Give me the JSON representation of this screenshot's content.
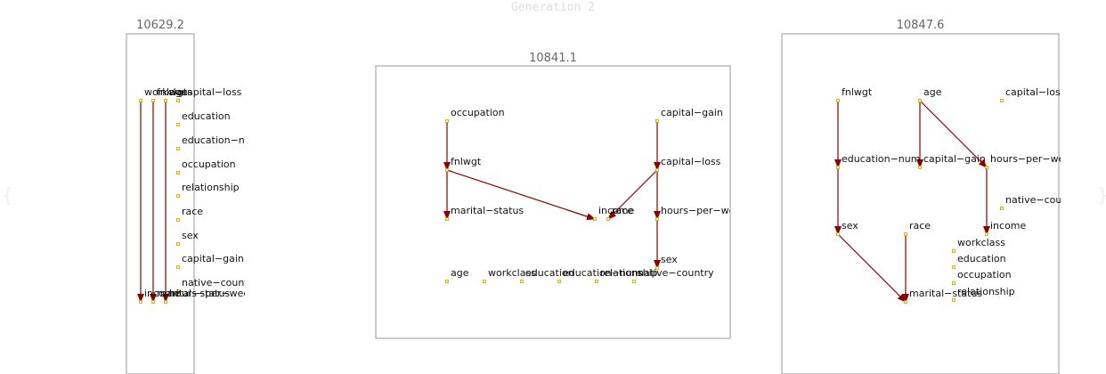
{
  "title": "Generation 2",
  "colors": {
    "edge": "#8b0000",
    "node_fill": "#ffff99",
    "node_stroke": "#c8a000",
    "frame": "#999999",
    "score_text": "#666666",
    "title_text": "#dddddd",
    "label_text": "#111111"
  },
  "panels": [
    {
      "score": "10629.2",
      "nodes": [
        {
          "id": "workclass",
          "label": "workclass"
        },
        {
          "id": "fnlwgt",
          "label": "fnlwgt"
        },
        {
          "id": "age",
          "label": "age"
        },
        {
          "id": "capital-loss",
          "label": "capital−loss"
        },
        {
          "id": "education",
          "label": "education"
        },
        {
          "id": "education-num",
          "label": "education−nu"
        },
        {
          "id": "occupation",
          "label": "occupation"
        },
        {
          "id": "relationship",
          "label": "relationship"
        },
        {
          "id": "race",
          "label": "race"
        },
        {
          "id": "sex",
          "label": "sex"
        },
        {
          "id": "capital-gain",
          "label": "capital−gain"
        },
        {
          "id": "native-country",
          "label": "native−count"
        },
        {
          "id": "income",
          "label": "income"
        },
        {
          "id": "marital-status",
          "label": "marital−status"
        },
        {
          "id": "hours-per-week",
          "label": "hours−per−wee"
        }
      ],
      "edges": [
        {
          "from": "workclass",
          "to": "income"
        },
        {
          "from": "fnlwgt",
          "to": "marital-status"
        },
        {
          "from": "age",
          "to": "hours-per-week"
        }
      ]
    },
    {
      "score": "10841.1",
      "nodes": [
        {
          "id": "occupation",
          "label": "occupation"
        },
        {
          "id": "capital-gain",
          "label": "capital−gain"
        },
        {
          "id": "fnlwgt",
          "label": "fnlwgt"
        },
        {
          "id": "capital-loss",
          "label": "capital−loss"
        },
        {
          "id": "marital-status",
          "label": "marital−status"
        },
        {
          "id": "income",
          "label": "income"
        },
        {
          "id": "race",
          "label": "race"
        },
        {
          "id": "hours-per-week",
          "label": "hours−per−we"
        },
        {
          "id": "sex",
          "label": "sex"
        },
        {
          "id": "age",
          "label": "age"
        },
        {
          "id": "workclass",
          "label": "workclass"
        },
        {
          "id": "education",
          "label": "education"
        },
        {
          "id": "education-num",
          "label": "education−num"
        },
        {
          "id": "relationship",
          "label": "relationship"
        },
        {
          "id": "native-country",
          "label": "native−country"
        }
      ],
      "edges": [
        {
          "from": "occupation",
          "to": "fnlwgt"
        },
        {
          "from": "fnlwgt",
          "to": "marital-status"
        },
        {
          "from": "fnlwgt",
          "to": "income"
        },
        {
          "from": "capital-gain",
          "to": "capital-loss"
        },
        {
          "from": "capital-loss",
          "to": "race"
        },
        {
          "from": "capital-loss",
          "to": "hours-per-week"
        },
        {
          "from": "hours-per-week",
          "to": "sex"
        }
      ]
    },
    {
      "score": "10847.6",
      "nodes": [
        {
          "id": "fnlwgt",
          "label": "fnlwgt"
        },
        {
          "id": "age",
          "label": "age"
        },
        {
          "id": "capital-loss",
          "label": "capital−loss"
        },
        {
          "id": "education-num",
          "label": "education−num"
        },
        {
          "id": "capital-gain",
          "label": "capital−gain"
        },
        {
          "id": "hours-per-week",
          "label": "hours−per−we"
        },
        {
          "id": "native-country",
          "label": "native−cou"
        },
        {
          "id": "sex",
          "label": "sex"
        },
        {
          "id": "race",
          "label": "race"
        },
        {
          "id": "income",
          "label": "income"
        },
        {
          "id": "workclass",
          "label": "workclass"
        },
        {
          "id": "education",
          "label": "education"
        },
        {
          "id": "occupation",
          "label": "occupation"
        },
        {
          "id": "relationship",
          "label": "relationship"
        },
        {
          "id": "marital-status",
          "label": "marital−status"
        }
      ],
      "edges": [
        {
          "from": "fnlwgt",
          "to": "education-num"
        },
        {
          "from": "education-num",
          "to": "sex"
        },
        {
          "from": "sex",
          "to": "marital-status"
        },
        {
          "from": "age",
          "to": "capital-gain"
        },
        {
          "from": "age",
          "to": "hours-per-week"
        },
        {
          "from": "hours-per-week",
          "to": "income"
        },
        {
          "from": "race",
          "to": "marital-status"
        }
      ]
    }
  ]
}
